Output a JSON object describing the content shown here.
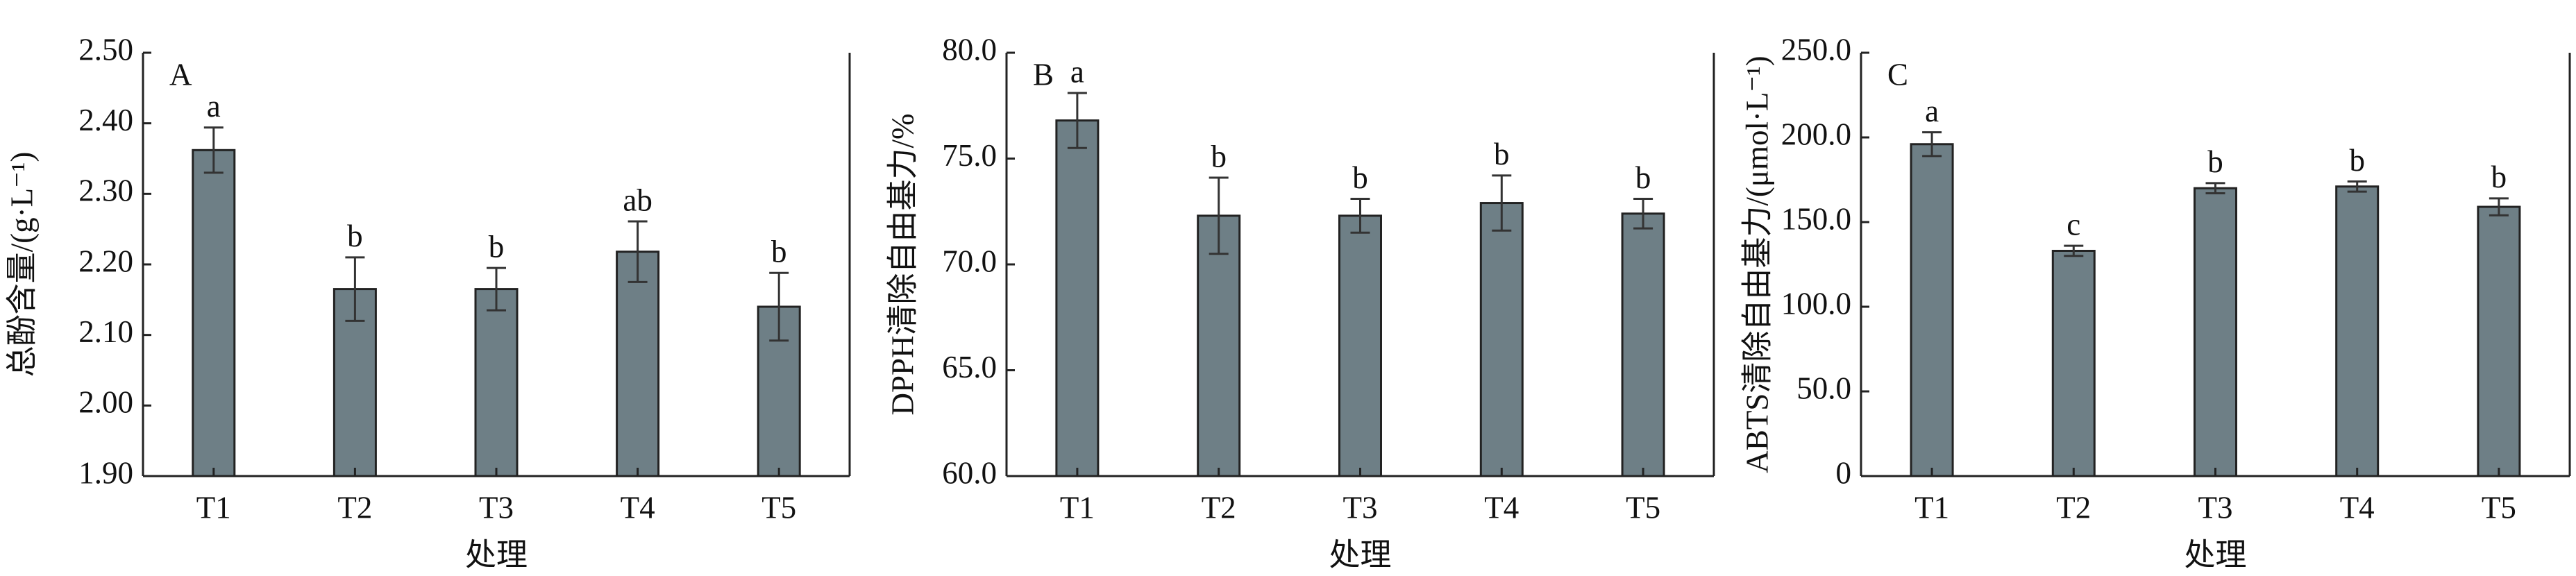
{
  "chart_data": [
    {
      "type": "bar",
      "panel": "A",
      "ylabel": "总酚含量/(g·L⁻¹)",
      "xlabel": "处理",
      "categories": [
        "T1",
        "T2",
        "T3",
        "T4",
        "T5"
      ],
      "values": [
        2.362,
        2.165,
        2.165,
        2.218,
        2.14
      ],
      "errors": [
        0.032,
        0.045,
        0.03,
        0.043,
        0.048
      ],
      "letters": [
        "a",
        "b",
        "b",
        "ab",
        "b"
      ],
      "color": "#6e7f86",
      "ylim": [
        1.9,
        2.5
      ],
      "yticks": [
        {
          "value": 1.9,
          "label": "1.90"
        },
        {
          "value": 2.0,
          "label": "2.00"
        },
        {
          "value": 2.1,
          "label": "2.10"
        },
        {
          "value": 2.2,
          "label": "2.20"
        },
        {
          "value": 2.3,
          "label": "2.30"
        },
        {
          "value": 2.4,
          "label": "2.40"
        },
        {
          "value": 2.5,
          "label": "2.50"
        }
      ]
    },
    {
      "type": "bar",
      "panel": "B",
      "ylabel": "DPPH清除自由基力/%",
      "xlabel": "处理",
      "categories": [
        "T1",
        "T2",
        "T3",
        "T4",
        "T5"
      ],
      "values": [
        76.8,
        72.3,
        72.3,
        72.9,
        72.4
      ],
      "errors": [
        1.3,
        1.8,
        0.8,
        1.3,
        0.7
      ],
      "letters": [
        "a",
        "b",
        "b",
        "b",
        "b"
      ],
      "color": "#6e7f86",
      "ylim": [
        60,
        80
      ],
      "yticks": [
        {
          "value": 60,
          "label": "60.0"
        },
        {
          "value": 65,
          "label": "65.0"
        },
        {
          "value": 70,
          "label": "70.0"
        },
        {
          "value": 75,
          "label": "75.0"
        },
        {
          "value": 80,
          "label": "80.0"
        }
      ]
    },
    {
      "type": "bar",
      "panel": "C",
      "ylabel": "ABTS清除自由基力/(μmol·L⁻¹)",
      "xlabel": "处理",
      "categories": [
        "T1",
        "T2",
        "T3",
        "T4",
        "T5"
      ],
      "values": [
        196,
        133,
        170,
        171,
        159
      ],
      "errors": [
        7,
        3,
        3,
        3,
        5
      ],
      "letters": [
        "a",
        "c",
        "b",
        "b",
        "b"
      ],
      "color": "#6e7f86",
      "ylim": [
        0,
        250
      ],
      "yticks": [
        0,
        {
          "value": 50,
          "label": "50.0"
        },
        {
          "value": 100,
          "label": "100.0"
        },
        {
          "value": 150,
          "label": "150.0"
        },
        {
          "value": 200,
          "label": "200.0"
        },
        {
          "value": 250,
          "label": "250.0"
        }
      ]
    }
  ]
}
